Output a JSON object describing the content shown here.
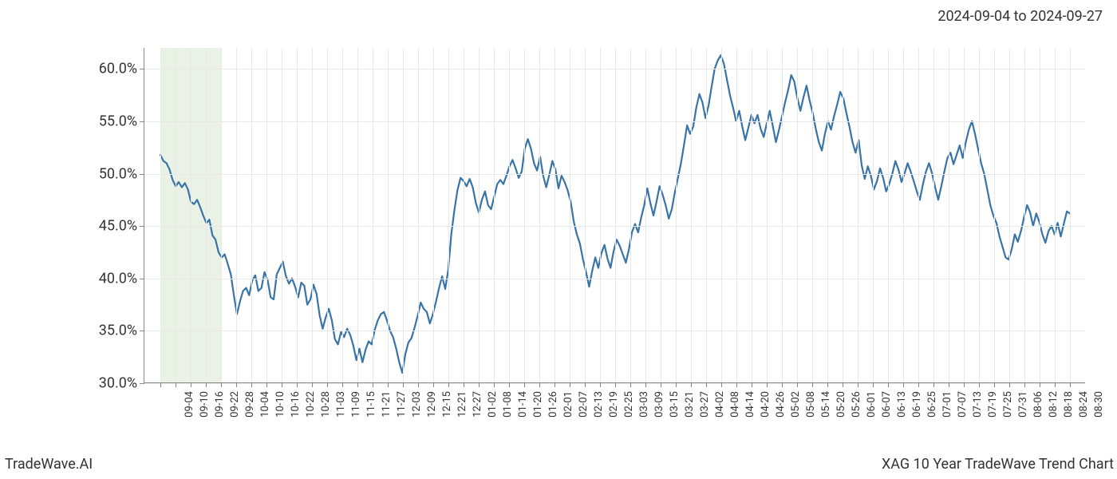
{
  "header": {
    "date_range": "2024-09-04 to 2024-09-27"
  },
  "footer": {
    "brand": "TradeWave.AI",
    "title": "XAG 10 Year TradeWave Trend Chart"
  },
  "chart": {
    "type": "line",
    "background_color": "#ffffff",
    "grid_color": "#e8e8e8",
    "axis_color": "#888888",
    "line_color": "#3874a8",
    "line_width": 2.2,
    "highlight_band": {
      "color": "#d8e8d0",
      "opacity": 0.55,
      "start_label": "09-04",
      "end_label": "09-28"
    },
    "ylim": [
      30,
      62
    ],
    "yticks": [
      30.0,
      35.0,
      40.0,
      45.0,
      50.0,
      55.0,
      60.0
    ],
    "ytick_labels": [
      "30.0%",
      "35.0%",
      "40.0%",
      "45.0%",
      "50.0%",
      "55.0%",
      "60.0%"
    ],
    "ytick_fontsize": 18,
    "xtick_fontsize": 13,
    "xtick_rotation": 90,
    "x_labels": [
      "09-04",
      "09-10",
      "09-16",
      "09-22",
      "09-28",
      "10-04",
      "10-10",
      "10-16",
      "10-22",
      "10-28",
      "11-03",
      "11-09",
      "11-15",
      "11-21",
      "11-27",
      "12-03",
      "12-09",
      "12-15",
      "12-21",
      "12-27",
      "01-02",
      "01-08",
      "01-14",
      "01-20",
      "01-26",
      "02-01",
      "02-07",
      "02-13",
      "02-19",
      "02-25",
      "03-03",
      "03-09",
      "03-15",
      "03-21",
      "03-27",
      "04-02",
      "04-08",
      "04-14",
      "04-20",
      "04-26",
      "05-02",
      "05-08",
      "05-14",
      "05-20",
      "05-26",
      "06-01",
      "06-07",
      "06-13",
      "06-19",
      "06-25",
      "07-01",
      "07-07",
      "07-13",
      "07-19",
      "07-25",
      "07-31",
      "08-06",
      "08-12",
      "08-18",
      "08-24",
      "08-30"
    ],
    "values": [
      51.8,
      51.2,
      51.0,
      50.4,
      49.4,
      48.8,
      49.2,
      48.7,
      49.1,
      48.5,
      47.3,
      47.1,
      47.5,
      46.8,
      46.0,
      45.3,
      45.6,
      44.1,
      43.7,
      42.5,
      42.0,
      42.3,
      41.4,
      40.4,
      38.4,
      36.6,
      37.8,
      38.8,
      39.1,
      38.4,
      39.8,
      40.3,
      38.8,
      39.1,
      40.6,
      39.9,
      38.2,
      38.0,
      40.4,
      41.0,
      41.6,
      40.2,
      39.5,
      40.0,
      39.2,
      38.2,
      39.6,
      39.3,
      37.5,
      38.0,
      39.4,
      38.5,
      36.5,
      35.2,
      36.3,
      37.1,
      36.0,
      34.2,
      33.7,
      34.9,
      34.4,
      35.2,
      34.6,
      33.6,
      32.2,
      33.3,
      32.0,
      33.2,
      34.0,
      33.7,
      35.1,
      36.0,
      36.6,
      36.8,
      36.0,
      35.0,
      34.4,
      33.3,
      32.0,
      31.0,
      32.8,
      33.9,
      34.3,
      35.3,
      36.4,
      37.7,
      37.1,
      36.8,
      35.7,
      36.6,
      37.8,
      39.1,
      40.2,
      39.0,
      40.8,
      44.2,
      46.5,
      48.4,
      49.6,
      49.3,
      48.8,
      49.5,
      48.7,
      47.2,
      46.3,
      47.5,
      48.3,
      47.0,
      46.6,
      47.8,
      49.0,
      49.4,
      49.0,
      49.8,
      50.7,
      51.3,
      50.5,
      49.6,
      50.2,
      52.4,
      53.3,
      52.4,
      51.0,
      50.3,
      51.6,
      49.8,
      48.7,
      49.9,
      51.2,
      50.4,
      48.6,
      49.8,
      49.2,
      48.4,
      47.3,
      45.4,
      44.2,
      43.3,
      41.8,
      40.6,
      39.2,
      40.7,
      42.0,
      41.0,
      42.4,
      43.2,
      41.9,
      41.0,
      42.6,
      43.7,
      43.1,
      42.3,
      41.5,
      42.8,
      44.4,
      45.2,
      44.4,
      45.8,
      47.0,
      48.6,
      47.2,
      46.0,
      47.3,
      48.8,
      48.0,
      47.0,
      45.7,
      46.6,
      48.2,
      49.6,
      51.0,
      52.8,
      54.6,
      53.8,
      54.5,
      56.3,
      57.6,
      56.8,
      55.3,
      56.5,
      58.3,
      60.0,
      60.8,
      61.3,
      60.5,
      59.0,
      57.5,
      56.3,
      55.0,
      56.0,
      54.5,
      53.2,
      54.4,
      55.6,
      54.8,
      55.6,
      54.3,
      53.5,
      54.8,
      56.0,
      54.5,
      53.0,
      54.2,
      55.5,
      56.8,
      58.0,
      59.4,
      58.8,
      57.2,
      56.0,
      57.3,
      58.4,
      57.0,
      55.8,
      54.3,
      53.0,
      52.2,
      53.8,
      55.0,
      54.2,
      55.5,
      56.6,
      57.8,
      57.2,
      55.8,
      54.5,
      53.0,
      52.0,
      53.2,
      50.8,
      49.5,
      50.7,
      49.8,
      48.5,
      49.3,
      50.5,
      49.6,
      48.3,
      49.0,
      50.0,
      51.2,
      50.4,
      49.2,
      50.0,
      51.0,
      50.2,
      49.3,
      48.3,
      47.5,
      49.0,
      50.2,
      51.0,
      50.0,
      48.7,
      47.5,
      48.8,
      50.2,
      51.5,
      52.0,
      50.9,
      51.8,
      52.7,
      51.5,
      53.0,
      54.2,
      55.0,
      53.8,
      52.4,
      51.0,
      50.0,
      48.5,
      47.0,
      46.0,
      45.3,
      44.0,
      43.0,
      42.0,
      41.8,
      42.8,
      44.2,
      43.5,
      44.5,
      45.8,
      47.0,
      46.3,
      45.0,
      46.2,
      45.4,
      44.2,
      43.4,
      44.5,
      45.0,
      44.2,
      45.3,
      44.0,
      45.2,
      46.4,
      46.2
    ]
  }
}
